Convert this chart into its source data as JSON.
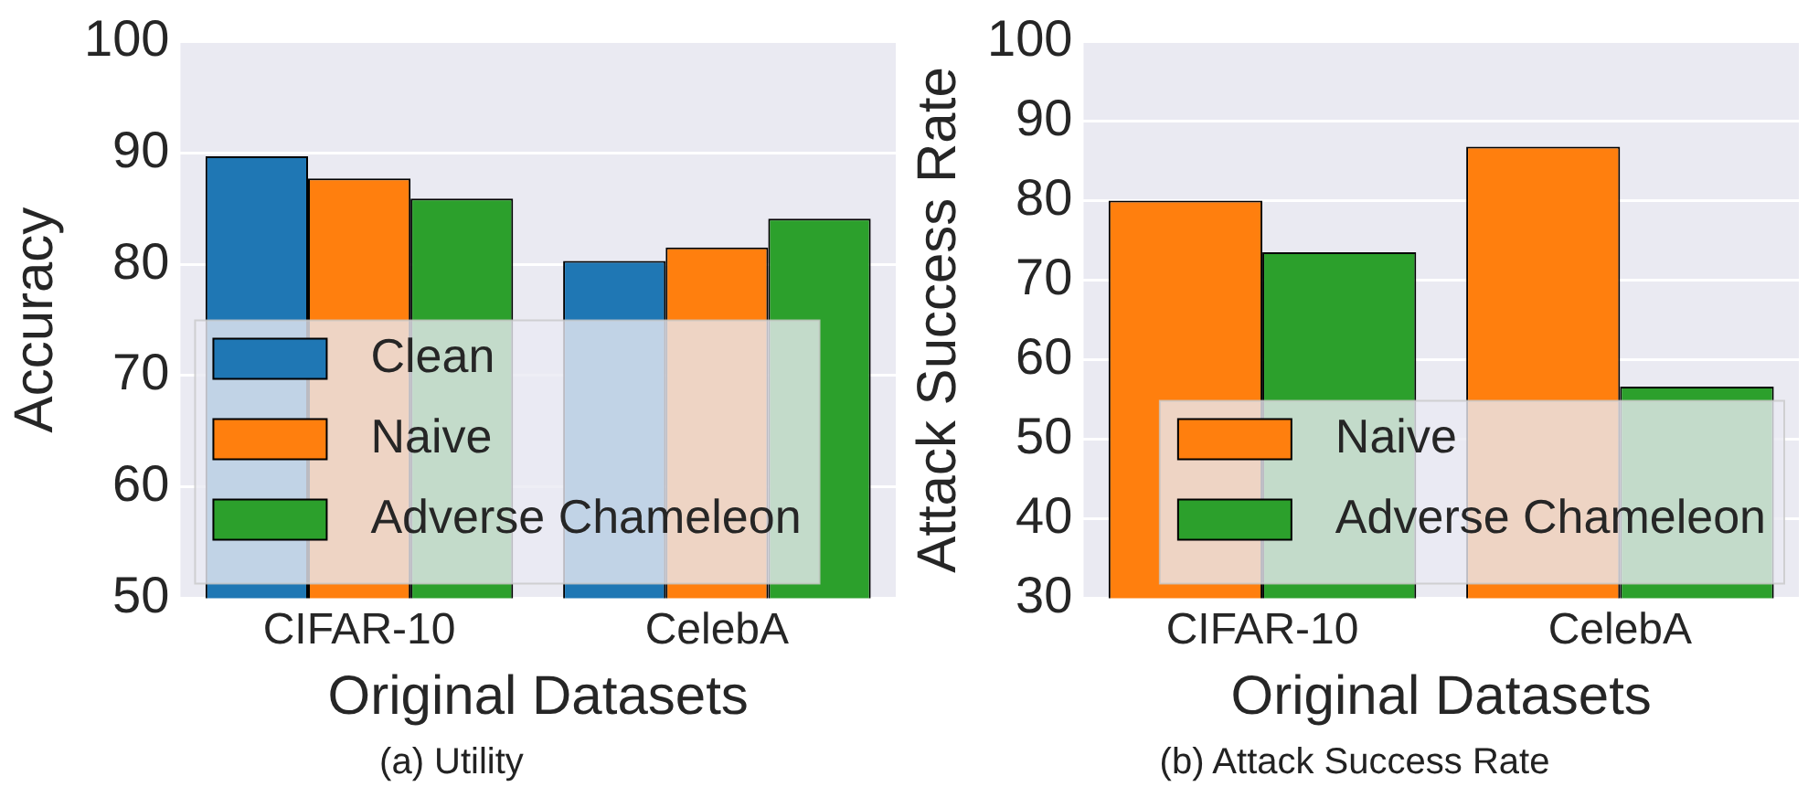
{
  "chart_data": [
    {
      "type": "bar",
      "xlabel": "Original Datasets",
      "ylabel": "Accuracy",
      "categories": [
        "CIFAR-10",
        "CelebA"
      ],
      "series": [
        {
          "name": "Clean",
          "color": "#1f77b4",
          "values": [
            89.7,
            80.3
          ]
        },
        {
          "name": "Naive",
          "color": "#ff7f0e",
          "values": [
            87.7,
            81.5
          ]
        },
        {
          "name": "Adverse Chameleon",
          "color": "#2ca02c",
          "values": [
            85.9,
            84.1
          ]
        }
      ],
      "ylim": [
        50,
        100
      ],
      "yticks": [
        50,
        60,
        70,
        80,
        90,
        100
      ],
      "grid": "y",
      "legend": "bottom left",
      "annotations": [
        "(a) Utility"
      ]
    },
    {
      "type": "bar",
      "xlabel": "Original Datasets",
      "ylabel": "Attack Success Rate",
      "categories": [
        "CIFAR-10",
        "CelebA"
      ],
      "series": [
        {
          "name": "Naive",
          "color": "#ff7f0e",
          "values": [
            80,
            86.8
          ]
        },
        {
          "name": "Adverse Chameleon",
          "color": "#2ca02c",
          "values": [
            73.5,
            56.6
          ]
        }
      ],
      "ylim": [
        30,
        100
      ],
      "yticks": [
        30,
        40,
        50,
        60,
        70,
        80,
        90,
        100
      ],
      "grid": "y",
      "legend": "bottom right",
      "annotations": [
        "(b) Attack Success Rate"
      ]
    }
  ]
}
